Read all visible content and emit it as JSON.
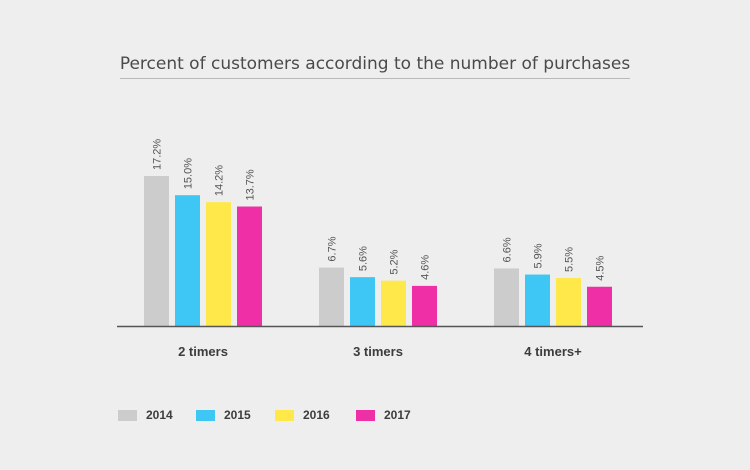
{
  "chart_data": {
    "type": "bar",
    "title": "Percent of customers according to the number of purchases",
    "categories": [
      "2 timers",
      "3 timers",
      "4 timers+"
    ],
    "series": [
      {
        "name": "2014",
        "color": "#cccccc",
        "values": [
          17.2,
          6.7,
          6.6
        ],
        "labels": [
          "17.2%",
          "6.7%",
          "6.6%"
        ]
      },
      {
        "name": "2015",
        "color": "#3ec6f5",
        "values": [
          15.0,
          5.6,
          5.9
        ],
        "labels": [
          "15.0%",
          "5.6%",
          "5.9%"
        ]
      },
      {
        "name": "2016",
        "color": "#ffe84a",
        "values": [
          14.2,
          5.2,
          5.5
        ],
        "labels": [
          "14.2%",
          "5.2%",
          "5.5%"
        ]
      },
      {
        "name": "2017",
        "color": "#ee2fa6",
        "values": [
          13.7,
          4.6,
          4.5
        ],
        "labels": [
          "13.7%",
          "4.6%",
          "4.5%"
        ]
      }
    ],
    "xlabel": "",
    "ylabel": "",
    "ylim": [
      0,
      17.2
    ],
    "grid": false,
    "legend_position": "bottom-left"
  }
}
